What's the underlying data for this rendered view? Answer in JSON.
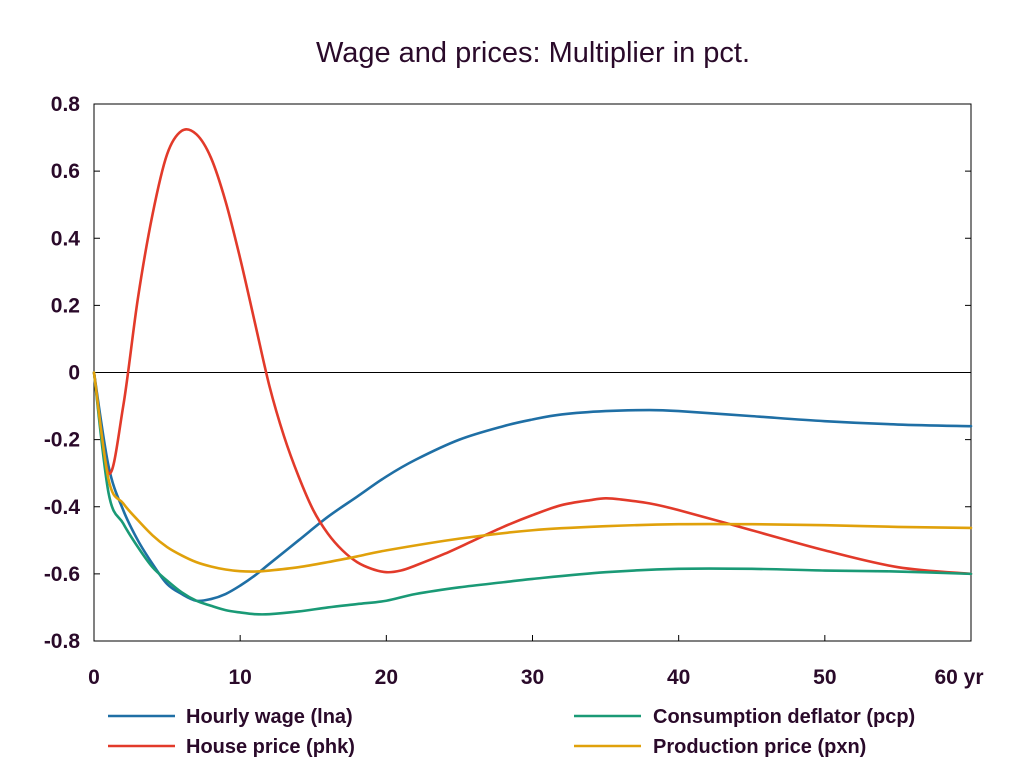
{
  "chart_data": {
    "type": "line",
    "title": "Wage and prices: Multiplier in pct.",
    "xlabel": "",
    "ylabel": "",
    "xlim": [
      0,
      60
    ],
    "ylim": [
      -0.8,
      0.8
    ],
    "x_ticks": [
      0,
      10,
      20,
      30,
      40,
      50,
      60
    ],
    "x_tick_labels": [
      "0",
      "10",
      "20",
      "30",
      "40",
      "50",
      "60 yr"
    ],
    "y_ticks": [
      0.8,
      0.6,
      0.4,
      0.2,
      0,
      -0.2,
      -0.4,
      -0.6,
      -0.8
    ],
    "y_tick_labels": [
      "0.8",
      "0.6",
      "0.4",
      "0.2",
      "0",
      "-0.2",
      "-0.4",
      "-0.6",
      "-0.8"
    ],
    "grid": false,
    "zero_line": true,
    "legend_position": "bottom",
    "series": [
      {
        "name": "Hourly wage (lna)",
        "color": "#1f6fa5",
        "x": [
          0,
          1,
          2,
          3,
          4,
          5,
          6,
          7,
          8,
          9,
          10,
          11,
          12,
          14,
          16,
          18,
          20,
          22,
          25,
          28,
          30,
          32,
          35,
          38,
          40,
          45,
          50,
          55,
          60
        ],
        "y": [
          0,
          -0.28,
          -0.41,
          -0.5,
          -0.57,
          -0.63,
          -0.66,
          -0.68,
          -0.675,
          -0.66,
          -0.635,
          -0.605,
          -0.57,
          -0.5,
          -0.43,
          -0.37,
          -0.31,
          -0.26,
          -0.2,
          -0.16,
          -0.14,
          -0.125,
          -0.115,
          -0.112,
          -0.115,
          -0.13,
          -0.145,
          -0.155,
          -0.16
        ]
      },
      {
        "name": "House price (phk)",
        "color": "#e23a2a",
        "x": [
          0,
          1,
          2,
          3,
          4,
          5,
          6,
          7,
          8,
          9,
          10,
          11,
          12,
          13,
          14,
          15,
          16,
          17,
          18,
          19,
          20,
          21,
          22,
          24,
          26,
          28,
          30,
          32,
          34,
          35,
          36,
          38,
          40,
          45,
          50,
          55,
          60
        ],
        "y": [
          0,
          -0.3,
          -0.1,
          0.22,
          0.47,
          0.65,
          0.72,
          0.71,
          0.64,
          0.51,
          0.34,
          0.15,
          -0.04,
          -0.19,
          -0.31,
          -0.41,
          -0.48,
          -0.53,
          -0.565,
          -0.585,
          -0.595,
          -0.59,
          -0.575,
          -0.54,
          -0.5,
          -0.46,
          -0.425,
          -0.395,
          -0.38,
          -0.375,
          -0.378,
          -0.39,
          -0.41,
          -0.47,
          -0.53,
          -0.58,
          -0.6
        ]
      },
      {
        "name": "Consumption deflator (pcp)",
        "color": "#1a9a76",
        "x": [
          0,
          1,
          2,
          3,
          4,
          5,
          6,
          7,
          8,
          9,
          10,
          11,
          12,
          14,
          16,
          18,
          20,
          22,
          25,
          28,
          30,
          35,
          40,
          45,
          50,
          55,
          60
        ],
        "y": [
          0,
          -0.36,
          -0.45,
          -0.52,
          -0.58,
          -0.62,
          -0.655,
          -0.68,
          -0.695,
          -0.708,
          -0.715,
          -0.72,
          -0.72,
          -0.712,
          -0.7,
          -0.69,
          -0.68,
          -0.66,
          -0.64,
          -0.625,
          -0.615,
          -0.595,
          -0.585,
          -0.585,
          -0.59,
          -0.593,
          -0.6
        ]
      },
      {
        "name": "Production price (pxn)",
        "color": "#e0a10b",
        "x": [
          0,
          1,
          2,
          3,
          4,
          5,
          6,
          7,
          8,
          9,
          10,
          11,
          12,
          14,
          16,
          18,
          20,
          25,
          30,
          35,
          40,
          45,
          50,
          55,
          60
        ],
        "y": [
          0,
          -0.32,
          -0.39,
          -0.44,
          -0.485,
          -0.52,
          -0.545,
          -0.565,
          -0.578,
          -0.587,
          -0.592,
          -0.593,
          -0.59,
          -0.58,
          -0.565,
          -0.548,
          -0.53,
          -0.495,
          -0.47,
          -0.458,
          -0.452,
          -0.452,
          -0.455,
          -0.46,
          -0.463
        ]
      }
    ]
  }
}
